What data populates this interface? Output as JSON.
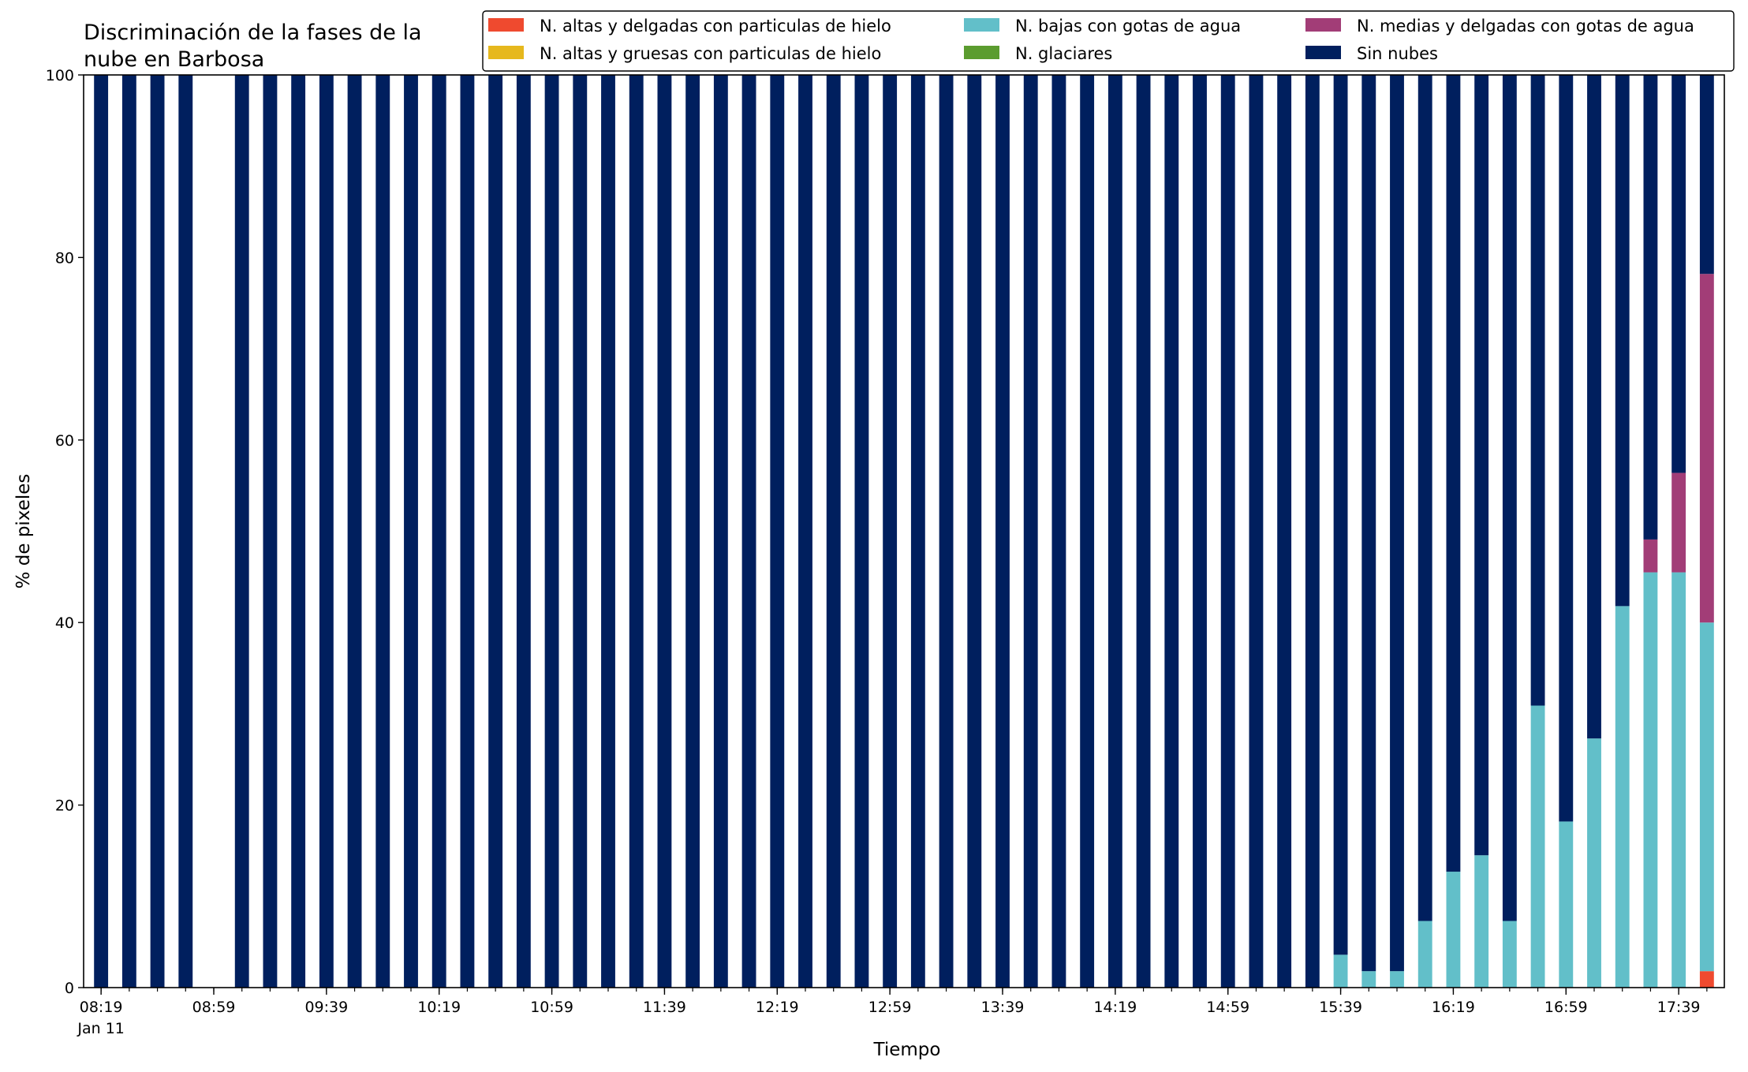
{
  "chart_data": {
    "type": "bar",
    "stacked": true,
    "title_lines": [
      "Discriminación de la fases de la",
      "nube en Barbosa"
    ],
    "xlabel": "Tiempo",
    "ylabel": "% de pixeles",
    "ylim": [
      0,
      100
    ],
    "yticks": [
      0,
      20,
      40,
      60,
      80,
      100
    ],
    "grid": false,
    "legend_position": "top-right",
    "x_tick_labels": [
      "08:19",
      "08:59",
      "09:39",
      "10:19",
      "10:59",
      "11:39",
      "12:19",
      "12:59",
      "13:39",
      "14:19",
      "14:59",
      "15:39",
      "16:19",
      "16:59",
      "17:39"
    ],
    "x_tick_sublabel": "Jan 11",
    "x_start": "08:19",
    "x_end": "17:49",
    "time_step_min": 10,
    "categories": [
      "08:19",
      "08:29",
      "08:39",
      "08:49",
      "08:59",
      "09:09",
      "09:19",
      "09:29",
      "09:39",
      "09:49",
      "09:59",
      "10:09",
      "10:19",
      "10:29",
      "10:39",
      "10:49",
      "10:59",
      "11:09",
      "11:19",
      "11:29",
      "11:39",
      "11:49",
      "11:59",
      "12:09",
      "12:19",
      "12:29",
      "12:39",
      "12:49",
      "12:59",
      "13:09",
      "13:19",
      "13:29",
      "13:39",
      "13:49",
      "13:59",
      "14:09",
      "14:19",
      "14:29",
      "14:39",
      "14:49",
      "14:59",
      "15:09",
      "15:19",
      "15:29",
      "15:39",
      "15:49",
      "15:59",
      "16:09",
      "16:19",
      "16:29",
      "16:39",
      "16:49",
      "16:59",
      "17:09",
      "17:19",
      "17:29",
      "17:39",
      "17:49"
    ],
    "series": [
      {
        "name": "N. altas y delgadas con particulas de hielo",
        "color": "#ef4a2f",
        "values": [
          0,
          0,
          0,
          0,
          null,
          0,
          0,
          0,
          0,
          0,
          0,
          0,
          0,
          0,
          0,
          0,
          0,
          0,
          0,
          0,
          0,
          0,
          0,
          0,
          0,
          0,
          0,
          0,
          0,
          0,
          0,
          0,
          0,
          0,
          0,
          0,
          0,
          0,
          0,
          0,
          0,
          0,
          0,
          0,
          0,
          0,
          0,
          0,
          0,
          0,
          0,
          0,
          0,
          0,
          0,
          0,
          0,
          1.8
        ]
      },
      {
        "name": "N. altas y gruesas con particulas de hielo",
        "color": "#e6b81d",
        "values": [
          0,
          0,
          0,
          0,
          null,
          0,
          0,
          0,
          0,
          0,
          0,
          0,
          0,
          0,
          0,
          0,
          0,
          0,
          0,
          0,
          0,
          0,
          0,
          0,
          0,
          0,
          0,
          0,
          0,
          0,
          0,
          0,
          0,
          0,
          0,
          0,
          0,
          0,
          0,
          0,
          0,
          0,
          0,
          0,
          0,
          0,
          0,
          0,
          0,
          0,
          0,
          0,
          0,
          0,
          0,
          0,
          0,
          0
        ]
      },
      {
        "name": "N. bajas con gotas de agua",
        "color": "#62bfc9",
        "values": [
          0,
          0,
          0,
          0,
          null,
          0,
          0,
          0,
          0,
          0,
          0,
          0,
          0,
          0,
          0,
          0,
          0,
          0,
          0,
          0,
          0,
          0,
          0,
          0,
          0,
          0,
          0,
          0,
          0,
          0,
          0,
          0,
          0,
          0,
          0,
          0,
          0,
          0,
          0,
          0,
          0,
          0,
          0,
          0,
          3.6,
          1.8,
          1.8,
          7.3,
          12.7,
          14.5,
          7.3,
          30.9,
          18.2,
          27.3,
          41.8,
          45.5,
          45.5,
          38.2
        ]
      },
      {
        "name": "N. glaciares",
        "color": "#5b9c2f",
        "values": [
          0,
          0,
          0,
          0,
          null,
          0,
          0,
          0,
          0,
          0,
          0,
          0,
          0,
          0,
          0,
          0,
          0,
          0,
          0,
          0,
          0,
          0,
          0,
          0,
          0,
          0,
          0,
          0,
          0,
          0,
          0,
          0,
          0,
          0,
          0,
          0,
          0,
          0,
          0,
          0,
          0,
          0,
          0,
          0,
          0,
          0,
          0,
          0,
          0,
          0,
          0,
          0,
          0,
          0,
          0,
          0,
          0,
          0
        ]
      },
      {
        "name": "N. medias y delgadas con gotas de agua",
        "color": "#a23d77",
        "values": [
          0,
          0,
          0,
          0,
          null,
          0,
          0,
          0,
          0,
          0,
          0,
          0,
          0,
          0,
          0,
          0,
          0,
          0,
          0,
          0,
          0,
          0,
          0,
          0,
          0,
          0,
          0,
          0,
          0,
          0,
          0,
          0,
          0,
          0,
          0,
          0,
          0,
          0,
          0,
          0,
          0,
          0,
          0,
          0,
          0,
          0,
          0,
          0,
          0,
          0,
          0,
          0,
          0,
          0,
          0,
          3.6,
          10.9,
          38.2
        ]
      },
      {
        "name": "Sin nubes",
        "color": "#001f5e",
        "values": [
          100,
          100,
          100,
          100,
          null,
          100,
          100,
          100,
          100,
          100,
          100,
          100,
          100,
          100,
          100,
          100,
          100,
          100,
          100,
          100,
          100,
          100,
          100,
          100,
          100,
          100,
          100,
          100,
          100,
          100,
          100,
          100,
          100,
          100,
          100,
          100,
          100,
          100,
          100,
          100,
          100,
          100,
          100,
          100,
          96.4,
          98.2,
          98.2,
          92.7,
          87.3,
          85.5,
          92.7,
          69.1,
          81.8,
          72.7,
          58.2,
          50.9,
          43.6,
          21.8
        ]
      }
    ],
    "legend_columns": [
      [
        0,
        1
      ],
      [
        2,
        3
      ],
      [
        4,
        5
      ]
    ]
  }
}
